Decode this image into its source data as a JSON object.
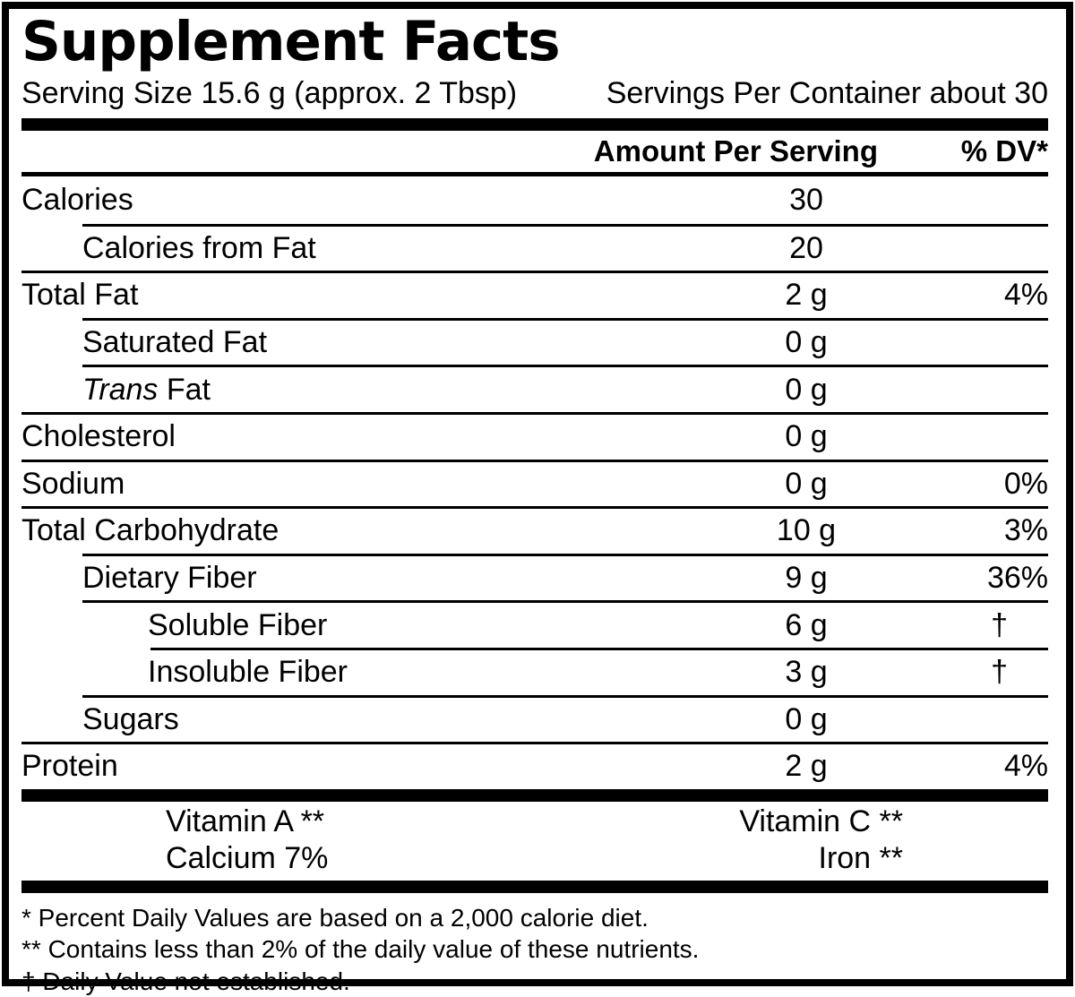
{
  "title": "Supplement Facts",
  "serving": {
    "size": "Serving Size 15.6 g (approx. 2 Tbsp)",
    "per_container": "Servings Per Container about 30"
  },
  "table": {
    "amount_header": "Amount Per Serving",
    "dv_header": "% DV*",
    "rows": [
      {
        "label": "Calories",
        "indent": 0,
        "amount": "30",
        "dv": ""
      },
      {
        "label": "Calories from Fat",
        "indent": 1,
        "amount": "20",
        "dv": ""
      },
      {
        "label": "Total Fat",
        "indent": 0,
        "amount": "2 g",
        "dv": "4%"
      },
      {
        "label": "Saturated Fat",
        "indent": 1,
        "amount": "0 g",
        "dv": ""
      },
      {
        "label_italic": "Trans",
        "label": " Fat",
        "indent": 1,
        "amount": "0 g",
        "dv": ""
      },
      {
        "label": "Cholesterol",
        "indent": 0,
        "amount": "0 g",
        "dv": ""
      },
      {
        "label": "Sodium",
        "indent": 0,
        "amount": "0 g",
        "dv": "0%"
      },
      {
        "label": "Total Carbohydrate",
        "indent": 0,
        "amount": "10 g",
        "dv": "3%"
      },
      {
        "label": "Dietary Fiber",
        "indent": 1,
        "amount": "9 g",
        "dv": "36%"
      },
      {
        "label": "Soluble Fiber",
        "indent": 2,
        "amount": "6 g",
        "dv": "†"
      },
      {
        "label": "Insoluble Fiber",
        "indent": 2,
        "amount": "3 g",
        "dv": "†"
      },
      {
        "label": "Sugars",
        "indent": 1,
        "amount": "0 g",
        "dv": ""
      },
      {
        "label": "Protein",
        "indent": 0,
        "amount": "2 g",
        "dv": "4%"
      }
    ]
  },
  "micronutrients": {
    "rows": [
      {
        "left": "Vitamin A **",
        "right": "Vitamin C **"
      },
      {
        "left": "Calcium 7%",
        "right": "Iron **"
      }
    ]
  },
  "footnotes": [
    "* Percent Daily Values are based on a 2,000 calorie diet.",
    "** Contains less than 2% of the daily value of these nutrients.",
    "† Daily Value not established."
  ],
  "colors": {
    "ink": "#000000",
    "background": "#ffffff"
  }
}
